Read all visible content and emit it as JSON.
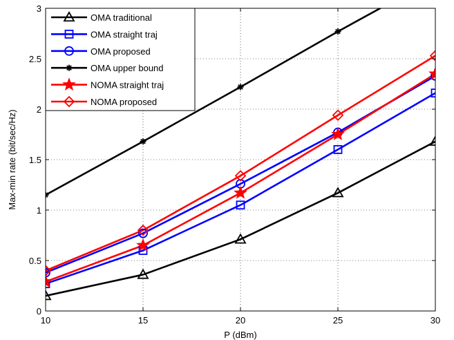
{
  "chart_data": {
    "type": "line",
    "xlabel": "P (dBm)",
    "ylabel": "Max-min rate (bit/sec/Hz)",
    "xlim": [
      10,
      30
    ],
    "ylim": [
      0,
      3
    ],
    "xticks": [
      10,
      15,
      20,
      25,
      30
    ],
    "yticks": [
      0,
      0.5,
      1,
      1.5,
      2,
      2.5,
      3
    ],
    "xtick_labels": [
      "10",
      "15",
      "20",
      "25",
      "30"
    ],
    "ytick_labels": [
      "0",
      "0.5",
      "1",
      "1.5",
      "2",
      "2.5",
      "3"
    ],
    "grid": "dotted",
    "legend_position": "top-left",
    "x": [
      10,
      15,
      20,
      25,
      30
    ],
    "series": [
      {
        "name": "OMA traditional",
        "values": [
          0.15,
          0.36,
          0.71,
          1.17,
          1.68
        ],
        "color": "#000000",
        "marker": "triangle"
      },
      {
        "name": "OMA straight traj",
        "values": [
          0.27,
          0.6,
          1.05,
          1.6,
          2.16
        ],
        "color": "#0000ff",
        "marker": "square"
      },
      {
        "name": "OMA proposed",
        "values": [
          0.38,
          0.77,
          1.26,
          1.77,
          2.33
        ],
        "color": "#0000ff",
        "marker": "circle"
      },
      {
        "name": "OMA upper bound",
        "values": [
          1.15,
          1.68,
          2.22,
          2.77,
          3.3
        ],
        "color": "#000000",
        "marker": "asterisk"
      },
      {
        "name": "NOMA straight traj",
        "values": [
          0.29,
          0.65,
          1.17,
          1.75,
          2.35
        ],
        "color": "#ff0000",
        "marker": "star"
      },
      {
        "name": "NOMA proposed",
        "values": [
          0.4,
          0.8,
          1.34,
          1.94,
          2.53
        ],
        "color": "#ff0000",
        "marker": "diamond"
      }
    ]
  }
}
